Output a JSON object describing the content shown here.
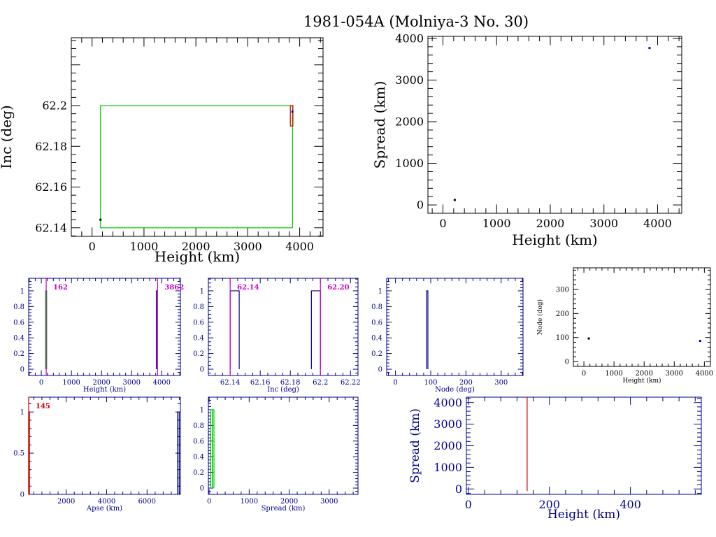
{
  "page_title": "1981-054A (Molniya-3 No. 30)",
  "chart_data": [
    {
      "id": "inc_vs_height",
      "type": "scatter",
      "xlabel": "Height (km)",
      "ylabel": "Inc (deg)",
      "xlim": [
        -400,
        4450
      ],
      "ylim": [
        62.1358,
        62.2333
      ],
      "xticks": [
        0,
        1000,
        2000,
        3000,
        4000
      ],
      "yticks": [
        62.14,
        62.16,
        62.18,
        62.2
      ],
      "ytick_labels": [
        "62.14",
        "62.16",
        "62.18",
        "62.2"
      ],
      "axis_color": "#000000",
      "points": [
        {
          "x": 162,
          "y": 62.144,
          "color": "#000000"
        },
        {
          "x": 3860,
          "y": 62.197,
          "color": "#0000cc"
        }
      ],
      "boxes": [
        {
          "x0": 162,
          "x1": 3862,
          "y0": 62.14,
          "y1": 62.2,
          "color": "#00cc00"
        },
        {
          "x0": 3820,
          "x1": 3870,
          "y0": 62.19,
          "y1": 62.2,
          "color": "#cc0000"
        }
      ]
    },
    {
      "id": "spread_vs_height",
      "type": "scatter",
      "xlabel": "Height (km)",
      "ylabel": "Spread (km)",
      "xlim": [
        -280,
        4450
      ],
      "ylim": [
        -200,
        4050
      ],
      "xticks": [
        0,
        1000,
        2000,
        3000,
        4000
      ],
      "yticks": [
        0,
        1000,
        2000,
        3000,
        4000
      ],
      "axis_color": "#000000",
      "points": [
        {
          "x": 220,
          "y": 120,
          "color": "#000000"
        },
        {
          "x": 3850,
          "y": 3770,
          "color": "#0000cc"
        }
      ]
    },
    {
      "id": "height_hist",
      "type": "bar",
      "xlabel": "Height (km)",
      "xlim": [
        -420,
        4620
      ],
      "ylim": [
        -0.08,
        1.16
      ],
      "xticks": [
        0,
        1000,
        2000,
        3000,
        4000
      ],
      "yticks": [
        0,
        0.2,
        0.4,
        0.6,
        0.8,
        1
      ],
      "ytick_labels": [
        "0",
        "0.2",
        "0.4",
        "0.6",
        "0.8",
        "1"
      ],
      "axis_color": "#00008b",
      "bins": [
        {
          "x0": 140,
          "x1": 180,
          "value": 1,
          "color": "#00cc00"
        },
        {
          "x0": 3820,
          "x1": 3862,
          "value": 1,
          "color": "#00008b"
        }
      ],
      "vlines": [
        {
          "x": 162,
          "label": "162",
          "color": "#cc00cc"
        },
        {
          "x": 3862,
          "label": "3862",
          "color": "#cc00cc"
        }
      ]
    },
    {
      "id": "inc_hist",
      "type": "bar",
      "xlabel": "Inc (deg)",
      "xlim": [
        62.1255,
        62.225
      ],
      "ylim": [
        -0.08,
        1.16
      ],
      "xticks": [
        62.14,
        62.16,
        62.18,
        62.2,
        62.22
      ],
      "xtick_labels": [
        "62.14",
        "62.16",
        "62.18",
        "62.2",
        "62.22"
      ],
      "yticks": [
        0,
        0.2,
        0.4,
        0.6,
        0.8,
        1
      ],
      "ytick_labels": [
        "0",
        "0.2",
        "0.4",
        "0.6",
        "0.8",
        "1"
      ],
      "axis_color": "#00008b",
      "bins": [
        {
          "x0": 62.14,
          "x1": 62.146,
          "value": 1,
          "color": "#00008b"
        },
        {
          "x0": 62.194,
          "x1": 62.2,
          "value": 1,
          "color": "#00008b"
        }
      ],
      "vlines": [
        {
          "x": 62.14,
          "label": "62.14",
          "color": "#cc00cc"
        },
        {
          "x": 62.2,
          "label": "62.20",
          "color": "#cc00cc"
        }
      ]
    },
    {
      "id": "node_hist",
      "type": "bar",
      "xlabel": "Node (deg)",
      "xlim": [
        -25,
        362
      ],
      "ylim": [
        -0.08,
        1.16
      ],
      "xticks": [
        0,
        100,
        200,
        300
      ],
      "yticks": [
        0,
        0.2,
        0.4,
        0.6,
        0.8,
        1
      ],
      "ytick_labels": [
        "0",
        "0.2",
        "0.4",
        "0.6",
        "0.8",
        "1"
      ],
      "axis_color": "#00008b",
      "bins": [
        {
          "x0": 88,
          "x1": 92,
          "value": 1,
          "color": "#00008b"
        }
      ]
    },
    {
      "id": "node_vs_height",
      "type": "scatter",
      "xlabel": "Height (km)",
      "ylabel": "Node (deg)",
      "xlim": [
        -350,
        4200
      ],
      "ylim": [
        -20,
        390
      ],
      "xticks": [
        0,
        1000,
        2000,
        3000,
        4000
      ],
      "yticks": [
        0,
        100,
        200,
        300
      ],
      "axis_color": "#000000",
      "points": [
        {
          "x": 162,
          "y": 96,
          "color": "#000000"
        },
        {
          "x": 3862,
          "y": 86,
          "color": "#0000cc"
        }
      ]
    },
    {
      "id": "apse_hist",
      "type": "bar",
      "xlabel": "Apse (km)",
      "xlim": [
        145,
        7650
      ],
      "ylim": [
        0,
        1.18
      ],
      "xticks": [
        2000,
        4000,
        6000
      ],
      "yticks": [
        0,
        0.5,
        1
      ],
      "ytick_labels": [
        "0",
        "0.5",
        "1"
      ],
      "axis_color": "#00008b",
      "bins": [
        {
          "x0": 145,
          "x1": 185,
          "value": 1,
          "color": "#cc0000"
        },
        {
          "x0": 7510,
          "x1": 7590,
          "value": 1,
          "color": "#00008b"
        }
      ],
      "vlines": [
        {
          "x": 145,
          "label": "145",
          "color": "#cc0000"
        }
      ]
    },
    {
      "id": "spread_hist",
      "type": "bar",
      "xlabel": "Spread (km)",
      "xlim": [
        -20,
        3720
      ],
      "ylim": [
        -0.08,
        1.16
      ],
      "xticks": [
        0,
        1000,
        2000,
        3000
      ],
      "yticks": [
        0,
        0.2,
        0.4,
        0.6,
        0.8,
        1
      ],
      "ytick_labels": [
        "0",
        "0.2",
        "0.4",
        "0.6",
        "0.8",
        "1"
      ],
      "axis_color": "#00008b",
      "bins": [
        {
          "x0": 40,
          "x1": 80,
          "value": 1,
          "color": "#00cc00"
        },
        {
          "x0": 80,
          "x1": 120,
          "value": 1,
          "color": "#00cc00"
        }
      ]
    },
    {
      "id": "spread_vs_height_low",
      "type": "scatter",
      "xlabel": "Height (km)",
      "ylabel": "Spread (km)",
      "xlim": [
        -5,
        575
      ],
      "ylim": [
        -250,
        4250
      ],
      "xticks": [
        0,
        200,
        400
      ],
      "yticks": [
        0,
        1000,
        2000,
        3000,
        4000
      ],
      "axis_color": "#00008b",
      "segments": [
        {
          "x0": 145,
          "y0": -100,
          "x1": 145,
          "y1": 4250,
          "color": "#cc0000"
        }
      ]
    }
  ]
}
